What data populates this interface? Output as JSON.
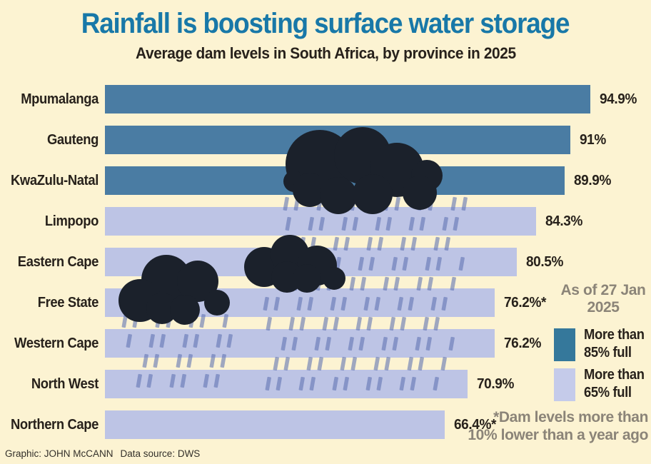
{
  "title": "Rainfall is boosting surface water storage",
  "subtitle": "Average dam levels in South Africa, by province in 2025",
  "as_of": {
    "line1": "As of 27 Jan",
    "line2": "2025"
  },
  "legend": {
    "items": [
      {
        "line1": "More than",
        "line2": "85% full",
        "swatch": "dark"
      },
      {
        "line1": "More than",
        "line2": "65% full",
        "swatch": "light"
      }
    ]
  },
  "note": {
    "line1": "*Dam levels more than",
    "line2": "10% lower than a year ago"
  },
  "footer": {
    "credit": "Graphic: JOHN McCANN",
    "source": "Data source: DWS"
  },
  "colors": {
    "bg": "#FCF3D2",
    "title": "#1878A8",
    "text": "#27211B",
    "gray": "#8B8478",
    "bar_dark": "#4A7CA3",
    "bar_light": "#BDC4E5",
    "legend_dark": "#35789B",
    "legend_light": "#C5CBEA",
    "cloud": "#1B212B",
    "rain": "rgba(96,116,178,0.6)"
  },
  "chart_data": {
    "type": "bar",
    "orientation": "horizontal",
    "title": "Rainfall is boosting surface water storage",
    "subtitle": "Average dam levels in South Africa, by province in 2025",
    "categories": [
      "Mpumalanga",
      "Gauteng",
      "KwaZulu-Natal",
      "Limpopo",
      "Eastern Cape",
      "Free State",
      "Western Cape",
      "North West",
      "Northern Cape"
    ],
    "values": [
      94.9,
      91,
      89.9,
      84.3,
      80.5,
      76.2,
      76.2,
      70.9,
      66.4
    ],
    "value_labels": [
      "94.9%",
      "91%",
      "89.9%",
      "84.3%",
      "80.5%",
      "76.2%*",
      "76.2%",
      "70.9%",
      "66.4%*"
    ],
    "category_class": [
      "more_than_85",
      "more_than_85",
      "more_than_85",
      "more_than_65",
      "more_than_65",
      "more_than_65",
      "more_than_65",
      "more_than_65",
      "more_than_65"
    ],
    "xlim": [
      0,
      100
    ],
    "grid": false,
    "legend_position": "right",
    "legend_labels": [
      "More than 85% full",
      "More than 65% full"
    ],
    "as_of": "As of 27 Jan 2025",
    "footnote": "*Dam levels more than 10% lower than a year ago",
    "source": "DWS"
  }
}
